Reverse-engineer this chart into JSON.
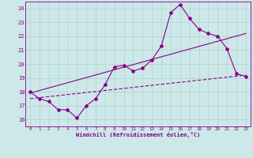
{
  "xlabel": "Windchill (Refroidissement éolien,°C)",
  "background_color": "#cce8e8",
  "line_color": "#880088",
  "grid_color": "#aacccc",
  "x_hours": [
    0,
    1,
    2,
    3,
    4,
    5,
    6,
    7,
    8,
    9,
    10,
    11,
    12,
    13,
    14,
    15,
    16,
    17,
    18,
    19,
    20,
    21,
    22,
    23
  ],
  "windchill_values": [
    18.0,
    17.5,
    17.3,
    16.7,
    16.7,
    16.1,
    17.0,
    17.5,
    18.5,
    19.8,
    19.9,
    19.5,
    19.7,
    20.3,
    21.3,
    23.7,
    24.3,
    23.3,
    22.5,
    22.2,
    22.0,
    21.1,
    19.3,
    19.1
  ],
  "trend1_x": [
    0,
    23
  ],
  "trend1_y": [
    17.9,
    22.2
  ],
  "trend2_x": [
    0,
    23
  ],
  "trend2_y": [
    17.5,
    19.2
  ],
  "ylim": [
    15.5,
    24.5
  ],
  "xlim": [
    -0.5,
    23.5
  ],
  "yticks": [
    16,
    17,
    18,
    19,
    20,
    21,
    22,
    23,
    24
  ],
  "xticks": [
    0,
    1,
    2,
    3,
    4,
    5,
    6,
    7,
    8,
    9,
    10,
    11,
    12,
    13,
    14,
    15,
    16,
    17,
    18,
    19,
    20,
    21,
    22,
    23
  ]
}
